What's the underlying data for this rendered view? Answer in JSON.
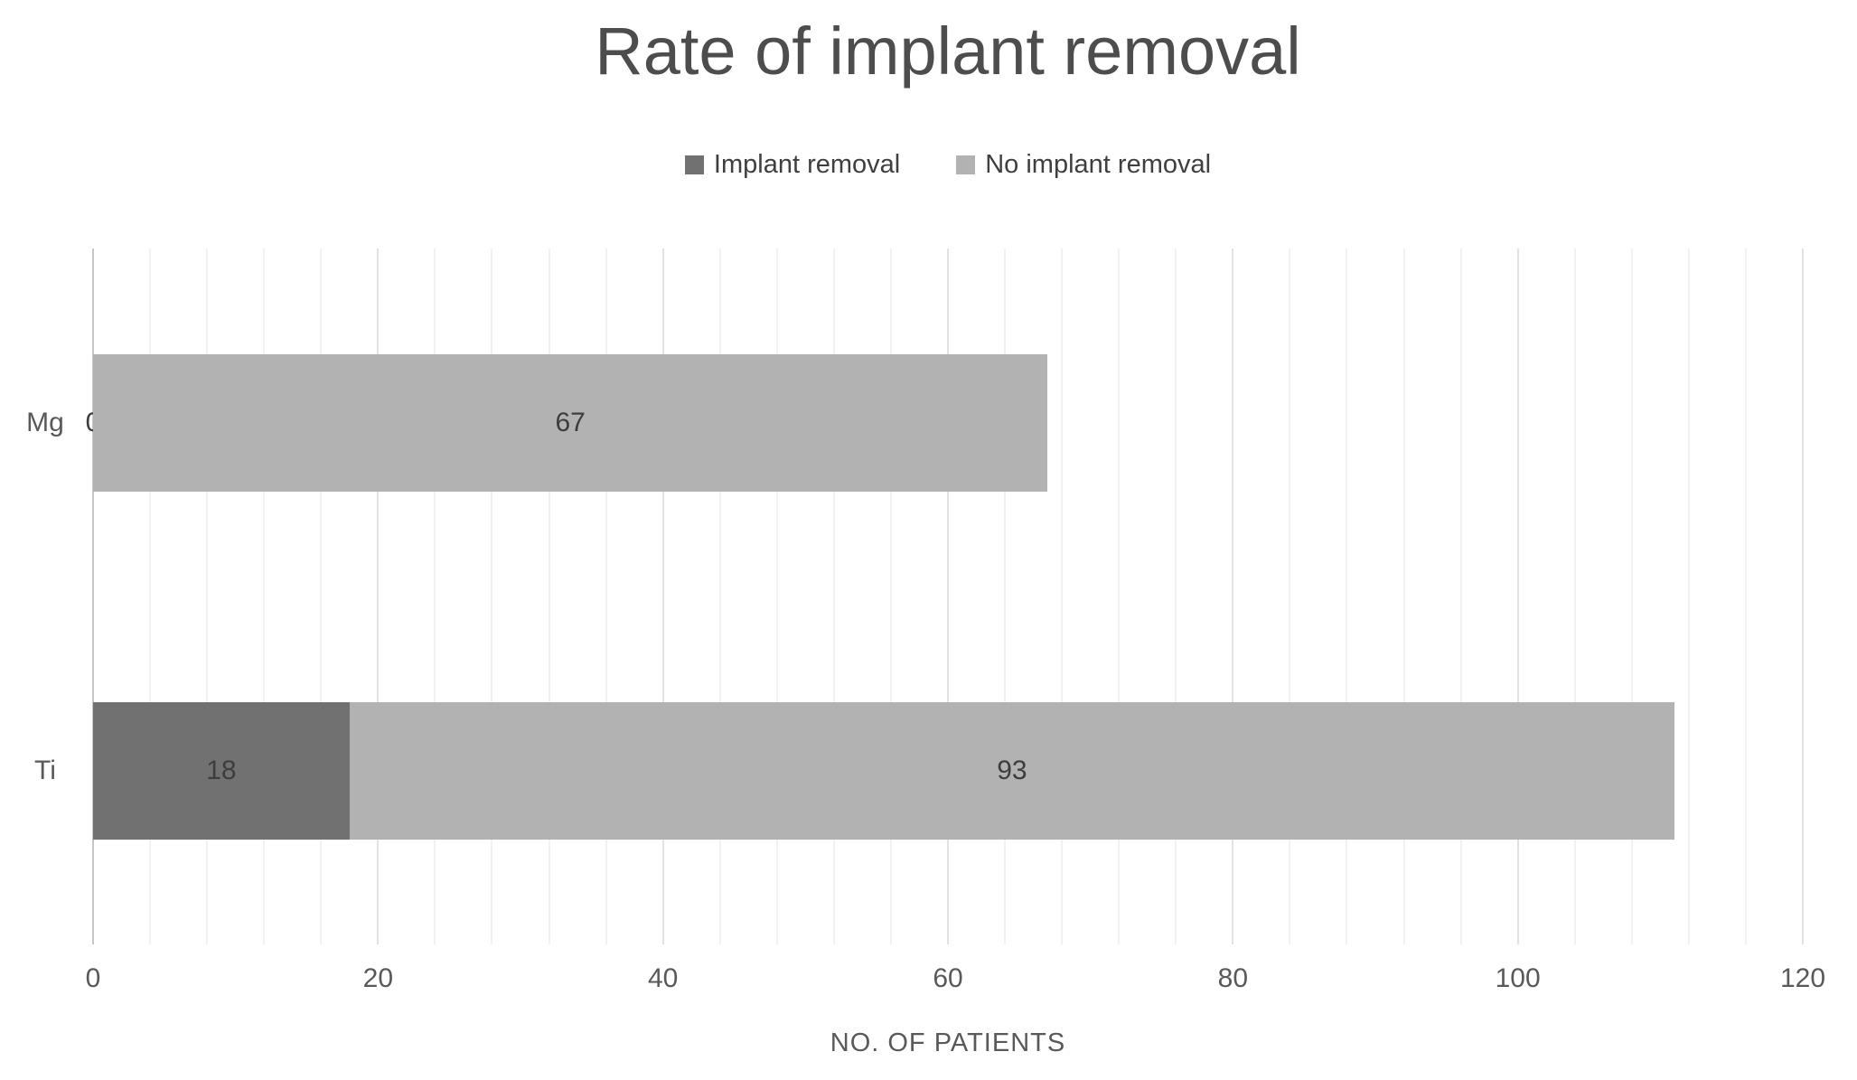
{
  "chart_data": {
    "type": "bar",
    "orientation": "horizontal-stacked",
    "title": "Rate of implant removal",
    "categories": [
      "Mg",
      "Ti"
    ],
    "series": [
      {
        "name": "Implant removal",
        "color": "#717171",
        "values": [
          0,
          18
        ]
      },
      {
        "name": "No implant removal",
        "color": "#b2b2b2",
        "values": [
          67,
          93
        ]
      }
    ],
    "data_labels": {
      "Mg": [
        "0",
        "67"
      ],
      "Ti": [
        "18",
        "93"
      ]
    },
    "xlabel": "NO. OF PATIENTS",
    "xlim": [
      0,
      120
    ],
    "x_major_ticks": [
      "0",
      "20",
      "40",
      "60",
      "80",
      "100",
      "120"
    ],
    "x_major_unit": 20,
    "x_minor_unit": 4,
    "grid": "vertical, minor every 4 units, major every 20 units",
    "legend_position": "top-center",
    "colors": {
      "title_text": "#4d4d4d",
      "axis_text": "#595959",
      "data_label_text": "#3d3d3d",
      "gridline_minor": "#f1f1f1",
      "gridline_major": "#e2e2e2",
      "axis_zero_line": "#c6c6c6",
      "background": "#ffffff"
    }
  }
}
